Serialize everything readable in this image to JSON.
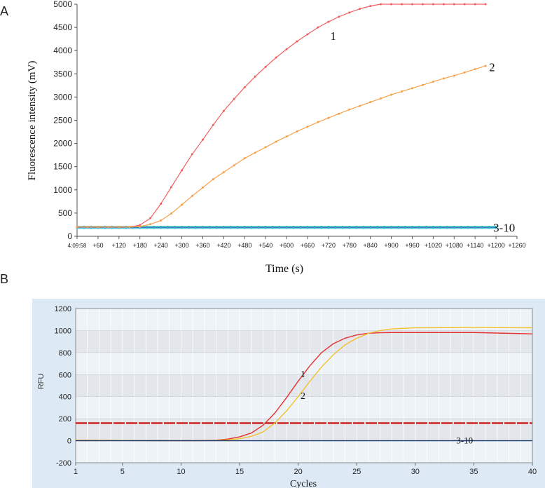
{
  "figure": {
    "panel_labels": [
      "A",
      "B"
    ]
  },
  "chart_data": [
    {
      "type": "line",
      "panel": "A",
      "title": "",
      "xlabel": "Time (s)",
      "ylabel": "Fluorescence intensity (mV)",
      "xlim": [
        0,
        1260
      ],
      "ylim": [
        0,
        5000
      ],
      "x_tick_labels": [
        "4:09:58",
        "+60",
        "+120",
        "+180",
        "+240",
        "+300",
        "+360",
        "+420",
        "+480",
        "+540",
        "+600",
        "+660",
        "+720",
        "+780",
        "+840",
        "+900",
        "+960",
        "+1020",
        "+1080",
        "+1140",
        "+1200",
        "+1260"
      ],
      "y_ticks": [
        0,
        500,
        1000,
        1500,
        2000,
        2500,
        3000,
        3500,
        4000,
        4500,
        5000
      ],
      "grid": false,
      "series": [
        {
          "name": "1",
          "color": "#f06060",
          "x": [
            0,
            30,
            60,
            90,
            120,
            150,
            180,
            210,
            240,
            270,
            300,
            330,
            360,
            390,
            420,
            450,
            480,
            510,
            540,
            570,
            600,
            630,
            660,
            690,
            720,
            750,
            780,
            810,
            840,
            870,
            900,
            930,
            960,
            990,
            1020,
            1050,
            1080,
            1110,
            1140,
            1170
          ],
          "y": [
            200,
            200,
            200,
            200,
            200,
            200,
            240,
            390,
            700,
            1060,
            1420,
            1770,
            2080,
            2400,
            2700,
            2960,
            3210,
            3440,
            3650,
            3850,
            4030,
            4200,
            4350,
            4500,
            4620,
            4730,
            4820,
            4900,
            4960,
            5000,
            5000,
            5000,
            5000,
            5000,
            5000,
            5000,
            5000,
            5000,
            5000,
            5000
          ]
        },
        {
          "name": "2",
          "color": "#f7a04a",
          "x": [
            0,
            30,
            60,
            90,
            120,
            150,
            180,
            210,
            240,
            270,
            300,
            330,
            360,
            390,
            420,
            450,
            480,
            510,
            540,
            570,
            600,
            630,
            660,
            690,
            720,
            750,
            780,
            810,
            840,
            870,
            900,
            930,
            960,
            990,
            1020,
            1050,
            1080,
            1110,
            1140,
            1170
          ],
          "y": [
            200,
            200,
            200,
            200,
            200,
            200,
            210,
            260,
            340,
            490,
            680,
            870,
            1050,
            1230,
            1380,
            1530,
            1680,
            1800,
            1920,
            2040,
            2150,
            2260,
            2360,
            2460,
            2550,
            2640,
            2730,
            2810,
            2890,
            2970,
            3050,
            3120,
            3190,
            3260,
            3330,
            3400,
            3460,
            3530,
            3600,
            3670
          ]
        }
      ],
      "baseline_group": {
        "name": "3-10",
        "value": 190,
        "colors": [
          "#2ab0c8",
          "#38c0a0",
          "#3a70c0",
          "#50c8e0"
        ]
      }
    },
    {
      "type": "line",
      "panel": "B",
      "title": "",
      "xlabel": "Cycles",
      "ylabel": "RFU",
      "xlim": [
        1,
        40
      ],
      "ylim": [
        -200,
        1200
      ],
      "x_ticks": [
        1,
        5,
        10,
        15,
        20,
        25,
        30,
        35,
        40
      ],
      "y_ticks": [
        -200,
        0,
        200,
        400,
        600,
        800,
        1000,
        1200
      ],
      "grid": true,
      "threshold": {
        "value": 160,
        "color": "#cc1818"
      },
      "series": [
        {
          "name": "1",
          "color": "#e53030",
          "x": [
            1,
            5,
            10,
            12,
            13,
            14,
            15,
            16,
            17,
            18,
            19,
            20,
            21,
            22,
            23,
            24,
            25,
            26,
            27,
            28,
            30,
            35,
            40
          ],
          "y": [
            5,
            2,
            0,
            2,
            5,
            15,
            35,
            70,
            140,
            250,
            390,
            540,
            680,
            800,
            880,
            930,
            960,
            975,
            980,
            982,
            982,
            982,
            970
          ]
        },
        {
          "name": "2",
          "color": "#f2c030",
          "x": [
            1,
            5,
            10,
            12,
            13,
            14,
            15,
            16,
            17,
            18,
            19,
            20,
            21,
            22,
            23,
            24,
            25,
            26,
            27,
            28,
            30,
            35,
            40
          ],
          "y": [
            5,
            2,
            0,
            1,
            3,
            8,
            18,
            40,
            80,
            160,
            270,
            400,
            540,
            670,
            780,
            870,
            930,
            975,
            1000,
            1015,
            1025,
            1028,
            1025
          ]
        },
        {
          "name": "3-10",
          "color": "#1a3a70",
          "x": [
            1,
            40
          ],
          "y": [
            0,
            0
          ]
        }
      ]
    }
  ]
}
